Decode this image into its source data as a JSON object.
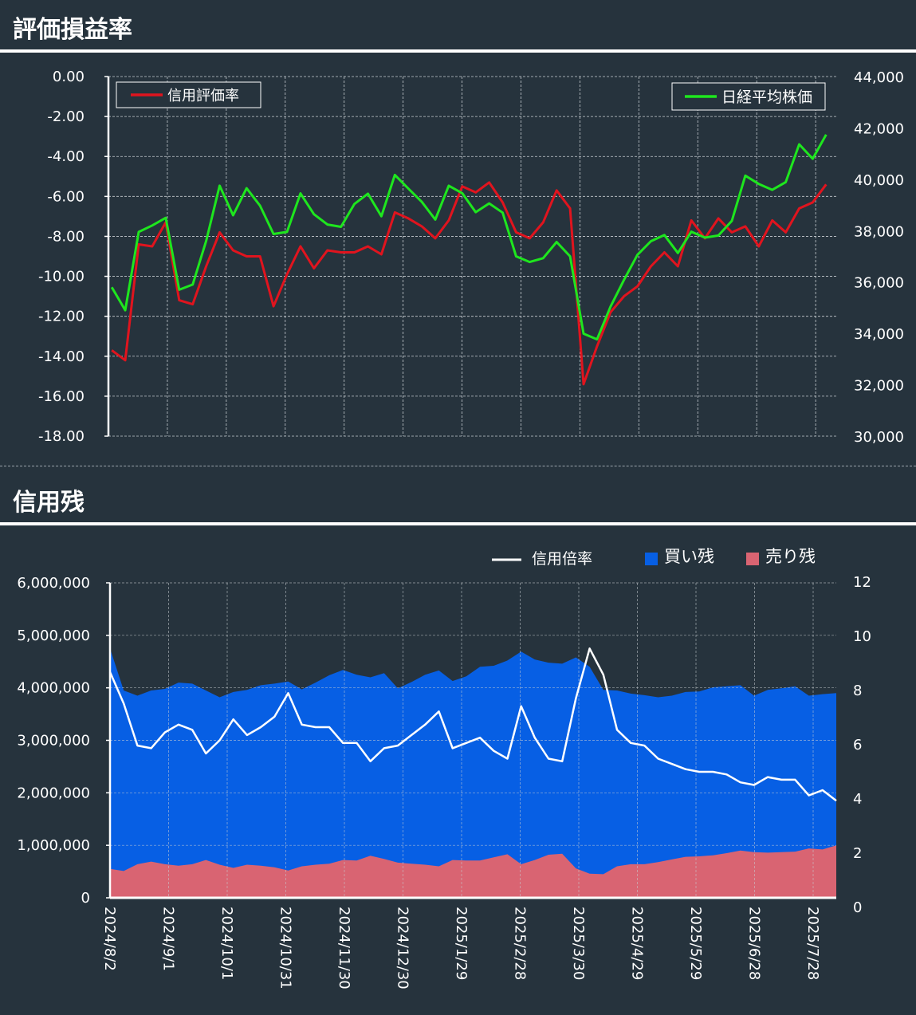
{
  "sections": {
    "pl_title": "評価損益率",
    "balance_title": "信用残"
  },
  "colors": {
    "background": "#26333d",
    "credit_rate_line": "#e0141e",
    "nikkei_line": "#1ee61e",
    "buy_area": "#075fe4",
    "sell_area": "#d96472",
    "ratio_line": "#ffffff",
    "grid": "#c8ced2"
  },
  "chart_data": [
    {
      "type": "line",
      "title": "評価損益率",
      "y_left": {
        "ticks": [
          "0.00",
          "-2.00",
          "-4.00",
          "-6.00",
          "-8.00",
          "-10.00",
          "-12.00",
          "-14.00",
          "-16.00",
          "-18.00"
        ],
        "range": [
          -18,
          0
        ]
      },
      "y_right": {
        "ticks": [
          "44,000",
          "42,000",
          "40,000",
          "38,000",
          "36,000",
          "34,000",
          "32,000",
          "30,000"
        ],
        "range": [
          30000,
          44000
        ]
      },
      "grid": true,
      "legend": [
        "信用評価率",
        "日経平均株価"
      ],
      "series": [
        {
          "name": "信用評価率",
          "axis": "left",
          "values": [
            -13.7,
            -14.2,
            -8.4,
            -8.5,
            -7.3,
            -11.2,
            -11.4,
            -9.5,
            -7.8,
            -8.7,
            -9.0,
            -9.0,
            -11.5,
            -9.9,
            -8.5,
            -9.6,
            -8.7,
            -8.8,
            -8.8,
            -8.5,
            -8.9,
            -6.8,
            -7.1,
            -7.5,
            -8.1,
            -7.2,
            -5.5,
            -5.8,
            -5.3,
            -6.3,
            -7.8,
            -8.1,
            -7.3,
            -5.7,
            -6.6,
            -15.4,
            -13.5,
            -11.8,
            -11.0,
            -10.5,
            -9.5,
            -8.8,
            -9.5,
            -7.2,
            -8.1,
            -7.1,
            -7.8,
            -7.5,
            -8.5,
            -7.2,
            -7.8,
            -6.6,
            -6.3,
            -5.4
          ]
        },
        {
          "name": "日経平均株価",
          "axis": "right",
          "values": [
            35800,
            34900,
            37950,
            38200,
            38500,
            35700,
            35900,
            37600,
            39750,
            38600,
            39650,
            38970,
            37870,
            37950,
            39450,
            38640,
            38240,
            38150,
            39040,
            39440,
            38560,
            40170,
            39640,
            39120,
            38430,
            39750,
            39460,
            38720,
            39060,
            38700,
            37000,
            36780,
            36930,
            37560,
            37000,
            33990,
            33770,
            35040,
            36080,
            37060,
            37590,
            37830,
            37130,
            37960,
            37730,
            37810,
            38380,
            40140,
            39820,
            39590,
            39890,
            41360,
            40800,
            41740
          ]
        }
      ]
    },
    {
      "type": "area",
      "title": "信用残",
      "x_ticks": [
        "2024/8/2",
        "2024/9/1",
        "2024/10/1",
        "2024/10/31",
        "2024/11/30",
        "2024/12/30",
        "2025/1/29",
        "2025/2/28",
        "2025/3/30",
        "2025/4/29",
        "2025/5/29",
        "2025/6/28",
        "2025/7/28"
      ],
      "y_left": {
        "ticks": [
          "6,000,000",
          "5,000,000",
          "4,000,000",
          "3,000,000",
          "2,000,000",
          "1,000,000",
          "0"
        ],
        "range": [
          0,
          6000000
        ]
      },
      "y_right": {
        "ticks": [
          "12",
          "10",
          "8",
          "6",
          "4",
          "2",
          "0"
        ],
        "range": [
          0,
          12
        ]
      },
      "grid": true,
      "legend": [
        "信用倍率",
        "買い残",
        "売り残"
      ],
      "series": [
        {
          "name": "買い残",
          "axis": "left",
          "values": [
            4750000,
            3950000,
            3850000,
            3950000,
            3980000,
            4100000,
            4080000,
            3950000,
            3820000,
            3920000,
            3960000,
            4050000,
            4080000,
            4120000,
            3970000,
            4100000,
            4240000,
            4340000,
            4250000,
            4200000,
            4280000,
            3990000,
            4110000,
            4250000,
            4330000,
            4130000,
            4220000,
            4400000,
            4420000,
            4520000,
            4690000,
            4540000,
            4480000,
            4460000,
            4580000,
            4400000,
            3960000,
            3950000,
            3890000,
            3860000,
            3820000,
            3850000,
            3920000,
            3930000,
            4010000,
            4030000,
            4050000,
            3850000,
            3960000,
            3990000,
            4030000,
            3850000,
            3880000,
            3900000
          ]
        },
        {
          "name": "売り残",
          "axis": "left",
          "values": [
            550000,
            510000,
            640000,
            690000,
            640000,
            610000,
            640000,
            720000,
            630000,
            570000,
            630000,
            610000,
            580000,
            520000,
            600000,
            630000,
            650000,
            720000,
            710000,
            800000,
            740000,
            670000,
            650000,
            630000,
            600000,
            720000,
            710000,
            710000,
            770000,
            830000,
            640000,
            720000,
            820000,
            840000,
            560000,
            460000,
            450000,
            600000,
            640000,
            640000,
            680000,
            730000,
            780000,
            790000,
            810000,
            850000,
            900000,
            870000,
            860000,
            870000,
            880000,
            940000,
            920000,
            1000000
          ]
        },
        {
          "name": "信用倍率",
          "axis": "right",
          "values": [
            8.6,
            7.4,
            5.8,
            5.7,
            6.3,
            6.6,
            6.4,
            5.5,
            6.0,
            6.8,
            6.2,
            6.5,
            6.9,
            7.8,
            6.6,
            6.5,
            6.5,
            5.9,
            5.9,
            5.2,
            5.7,
            5.8,
            6.2,
            6.6,
            7.1,
            5.7,
            5.9,
            6.1,
            5.6,
            5.3,
            7.3,
            6.1,
            5.3,
            5.2,
            7.6,
            9.5,
            8.5,
            6.4,
            5.9,
            5.8,
            5.3,
            5.1,
            4.9,
            4.8,
            4.8,
            4.7,
            4.4,
            4.3,
            4.6,
            4.5,
            4.5,
            3.9,
            4.1,
            3.7
          ]
        }
      ]
    }
  ]
}
